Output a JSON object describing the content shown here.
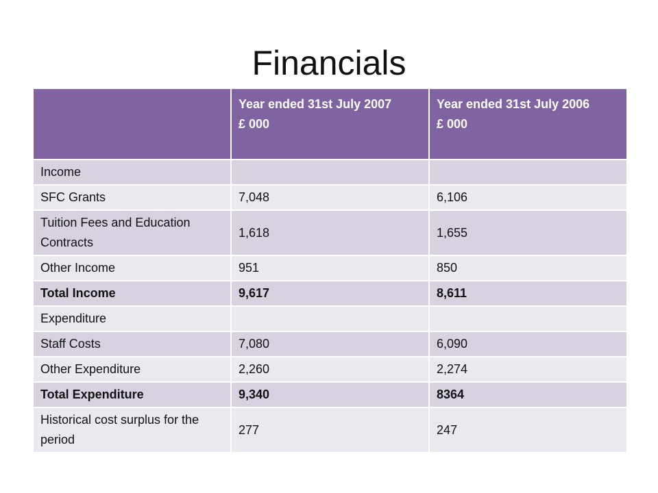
{
  "title": "Financials",
  "table": {
    "headers": [
      "",
      "Year ended 31st July 2007\n£ 000",
      "Year ended 31st July 2006\n£ 000"
    ],
    "rows": [
      {
        "label": "Income",
        "v2007": "",
        "v2006": "",
        "bold": false
      },
      {
        "label": "SFC Grants",
        "v2007": "7,048",
        "v2006": "6,106",
        "bold": false
      },
      {
        "label": "Tuition Fees and Education Contracts",
        "v2007": "1,618",
        "v2006": "1,655",
        "bold": false
      },
      {
        "label": "Other Income",
        "v2007": "951",
        "v2006": "850",
        "bold": false
      },
      {
        "label": "Total Income",
        "v2007": "9,617",
        "v2006": "8,611",
        "bold": true
      },
      {
        "label": "Expenditure",
        "v2007": "",
        "v2006": "",
        "bold": false
      },
      {
        "label": "Staff Costs",
        "v2007": "7,080",
        "v2006": "6,090",
        "bold": false
      },
      {
        "label": "Other Expenditure",
        "v2007": "2,260",
        "v2006": "2,274",
        "bold": false
      },
      {
        "label": "Total Expenditure",
        "v2007": "9,340",
        "v2006": "8364",
        "bold": true
      },
      {
        "label": "Historical cost surplus for the period",
        "v2007": "277",
        "v2006": "247",
        "bold": false
      }
    ]
  },
  "colors": {
    "header": "#8064a2",
    "row_dark": "#d7d1e0",
    "row_light": "#ebe8f0"
  }
}
